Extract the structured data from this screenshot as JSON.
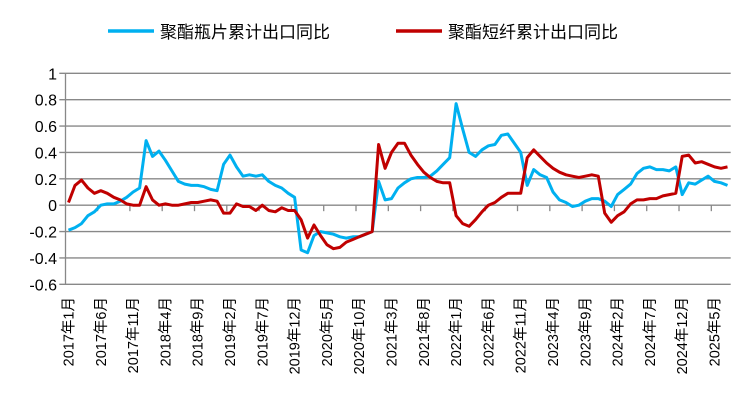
{
  "chart_data": {
    "type": "line",
    "title": "",
    "xlabel": "",
    "ylabel": "",
    "ylim": [
      -0.6,
      1
    ],
    "yticks": [
      "1",
      "0.8",
      "0.6",
      "0.4",
      "0.2",
      "0",
      "-0.2",
      "-0.4",
      "-0.6"
    ],
    "grid": "horizontal",
    "legend_position": "top",
    "categories": [
      "2017年1月",
      "2017年2月",
      "2017年3月",
      "2017年4月",
      "2017年5月",
      "2017年6月",
      "2017年7月",
      "2017年8月",
      "2017年9月",
      "2017年10月",
      "2017年11月",
      "2017年12月",
      "2018年1月",
      "2018年2月",
      "2018年3月",
      "2018年4月",
      "2018年5月",
      "2018年6月",
      "2018年7月",
      "2018年8月",
      "2018年9月",
      "2018年10月",
      "2018年11月",
      "2018年12月",
      "2019年1月",
      "2019年2月",
      "2019年3月",
      "2019年4月",
      "2019年5月",
      "2019年6月",
      "2019年7月",
      "2019年8月",
      "2019年9月",
      "2019年10月",
      "2019年11月",
      "2019年12月",
      "2020年1月",
      "2020年2月",
      "2020年3月",
      "2020年4月",
      "2020年5月",
      "2020年6月",
      "2020年7月",
      "2020年8月",
      "2020年9月",
      "2020年10月",
      "2020年11月",
      "2020年12月",
      "2021年1月",
      "2021年2月",
      "2021年3月",
      "2021年4月",
      "2021年5月",
      "2021年6月",
      "2021年7月",
      "2021年8月",
      "2021年9月",
      "2021年10月",
      "2021年11月",
      "2021年12月",
      "2022年1月",
      "2022年2月",
      "2022年3月",
      "2022年4月",
      "2022年5月",
      "2022年6月",
      "2022年7月",
      "2022年8月",
      "2022年9月",
      "2022年10月",
      "2022年11月",
      "2022年12月",
      "2023年1月",
      "2023年2月",
      "2023年3月",
      "2023年4月",
      "2023年5月",
      "2023年6月",
      "2023年7月",
      "2023年8月",
      "2023年9月",
      "2023年10月",
      "2023年11月",
      "2023年12月",
      "2024年1月",
      "2024年2月",
      "2024年3月",
      "2024年4月",
      "2024年5月",
      "2024年6月",
      "2024年7月",
      "2024年8月",
      "2024年9月",
      "2024年10月",
      "2024年11月",
      "2024年12月",
      "2025年1月",
      "2025年2月",
      "2025年3月",
      "2025年4月",
      "2025年5月",
      "2025年6月",
      "2025年7月"
    ],
    "x_tick_labels": [
      "2017年1月",
      "2017年6月",
      "2017年11月",
      "2018年4月",
      "2018年9月",
      "2019年2月",
      "2019年7月",
      "2019年12月",
      "2020年5月",
      "2020年10月",
      "2021年3月",
      "2021年8月",
      "2022年1月",
      "2022年6月",
      "2022年11月",
      "2023年4月",
      "2023年9月",
      "2024年2月",
      "2024年7月",
      "2024年12月",
      "2025年5月"
    ],
    "series": [
      {
        "name": "聚酯瓶片累计出口同比",
        "color": "#00B0F0",
        "values": [
          -0.19,
          -0.17,
          -0.14,
          -0.08,
          -0.05,
          0.0,
          0.01,
          0.01,
          0.03,
          0.06,
          0.1,
          0.13,
          0.49,
          0.37,
          0.41,
          0.34,
          0.26,
          0.18,
          0.16,
          0.15,
          0.15,
          0.14,
          0.12,
          0.11,
          0.31,
          0.38,
          0.29,
          0.22,
          0.23,
          0.22,
          0.23,
          0.18,
          0.15,
          0.13,
          0.09,
          0.06,
          -0.34,
          -0.36,
          -0.23,
          -0.2,
          -0.21,
          -0.22,
          -0.24,
          -0.25,
          -0.24,
          -0.24,
          -0.22,
          -0.2,
          0.18,
          0.04,
          0.05,
          0.13,
          0.17,
          0.2,
          0.21,
          0.21,
          0.22,
          0.26,
          0.31,
          0.36,
          0.77,
          0.58,
          0.4,
          0.37,
          0.42,
          0.45,
          0.46,
          0.53,
          0.54,
          0.47,
          0.4,
          0.15,
          0.27,
          0.23,
          0.21,
          0.1,
          0.04,
          0.02,
          -0.01,
          0.0,
          0.03,
          0.05,
          0.05,
          0.03,
          -0.01,
          0.08,
          0.12,
          0.16,
          0.24,
          0.28,
          0.29,
          0.27,
          0.27,
          0.26,
          0.29,
          0.08,
          0.17,
          0.16,
          0.19,
          0.22,
          0.18,
          0.17,
          0.15
        ]
      },
      {
        "name": "聚酯短纤累计出口同比",
        "color": "#C00000",
        "values": [
          0.02,
          0.15,
          0.19,
          0.13,
          0.09,
          0.11,
          0.09,
          0.06,
          0.04,
          0.01,
          0.0,
          0.0,
          0.14,
          0.04,
          0.0,
          0.01,
          0.0,
          0.0,
          0.01,
          0.02,
          0.02,
          0.03,
          0.04,
          0.03,
          -0.06,
          -0.06,
          0.01,
          -0.01,
          -0.01,
          -0.04,
          0.0,
          -0.04,
          -0.05,
          -0.02,
          -0.04,
          -0.04,
          -0.11,
          -0.25,
          -0.15,
          -0.23,
          -0.3,
          -0.33,
          -0.32,
          -0.28,
          -0.26,
          -0.24,
          -0.22,
          -0.2,
          0.46,
          0.28,
          0.4,
          0.47,
          0.47,
          0.38,
          0.31,
          0.25,
          0.21,
          0.18,
          0.17,
          0.17,
          -0.08,
          -0.14,
          -0.16,
          -0.11,
          -0.05,
          0.0,
          0.02,
          0.06,
          0.09,
          0.09,
          0.09,
          0.36,
          0.42,
          0.37,
          0.32,
          0.28,
          0.25,
          0.23,
          0.22,
          0.21,
          0.22,
          0.23,
          0.22,
          -0.06,
          -0.13,
          -0.08,
          -0.05,
          0.01,
          0.04,
          0.04,
          0.05,
          0.05,
          0.07,
          0.08,
          0.09,
          0.37,
          0.38,
          0.32,
          0.33,
          0.31,
          0.29,
          0.28,
          0.29
        ]
      }
    ]
  }
}
